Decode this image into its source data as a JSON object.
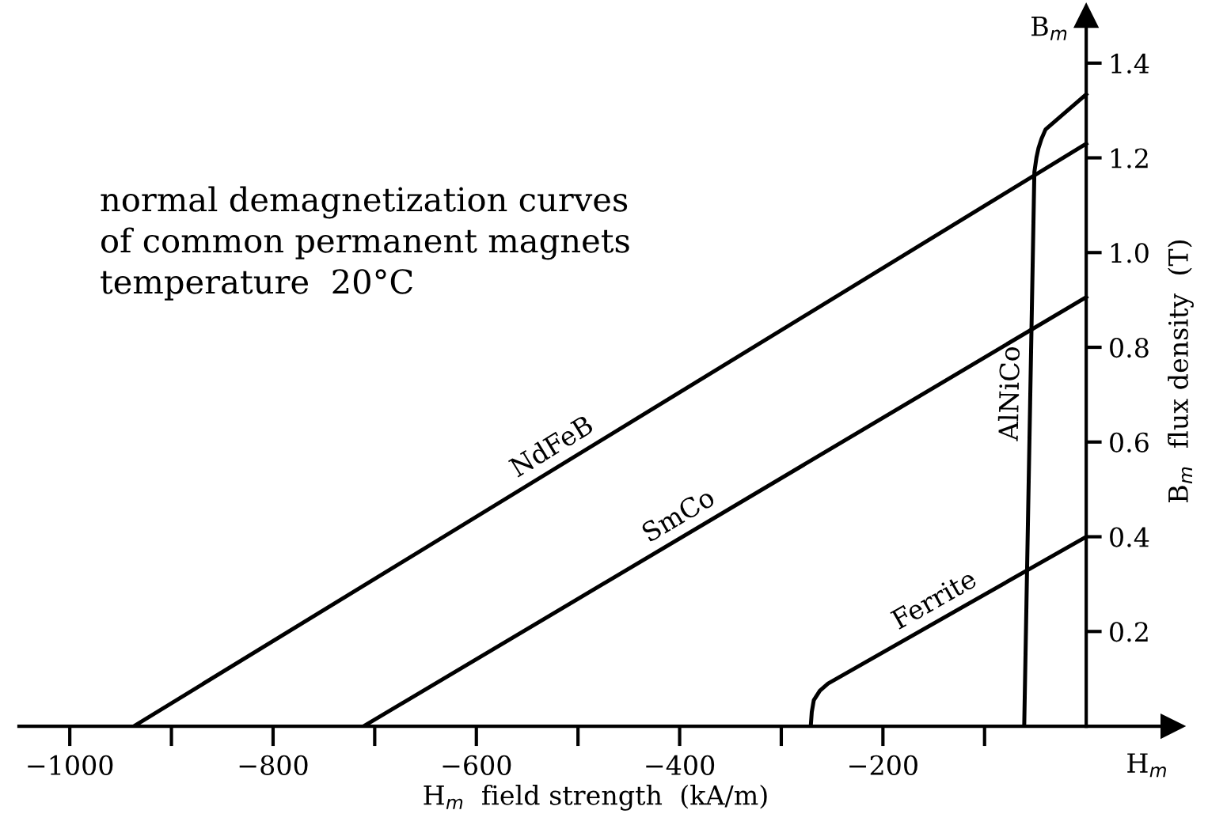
{
  "chart_data": {
    "type": "line",
    "title": "normal demagnetization curves\nof common permanent magnets\ntemperature  20°C",
    "xlabel": "H$_{m}$  field strength  (kA/m)",
    "ylabel": "B$_{m}$  flux density  (T)",
    "series": [
      {
        "name": "NdFeB",
        "color": "#000000",
        "x": [
          -937,
          0
        ],
        "values": [
          0,
          1.23
        ]
      },
      {
        "name": "SmCo",
        "color": "#000000",
        "x": [
          -711,
          0
        ],
        "values": [
          0,
          0.906
        ]
      },
      {
        "name": "Ferrite",
        "color": "#000000",
        "x": [
          -271,
          -270,
          -268,
          -262,
          -254,
          0
        ],
        "values": [
          0,
          0.03,
          0.055,
          0.075,
          0.09,
          0.4
        ]
      },
      {
        "name": "AlNiCo",
        "color": "#000000",
        "x": [
          -61,
          -51,
          -49,
          -47,
          -44,
          -40,
          0
        ],
        "values": [
          0,
          1.17,
          1.2,
          1.22,
          1.24,
          1.26,
          1.334
        ]
      }
    ],
    "annotations": [
      "B$_{m}$",
      "H$_{m}$"
    ],
    "xlim": [
      -1050,
      85
    ],
    "ylim": [
      0,
      1.5
    ],
    "xticks": [
      {
        "value": -1000,
        "label": "−1000"
      },
      {
        "value": -900,
        "label": null
      },
      {
        "value": -800,
        "label": "−800"
      },
      {
        "value": -700,
        "label": null
      },
      {
        "value": -600,
        "label": "−600"
      },
      {
        "value": -500,
        "label": null
      },
      {
        "value": -400,
        "label": "−400"
      },
      {
        "value": -300,
        "label": null
      },
      {
        "value": -200,
        "label": "−200"
      },
      {
        "value": -100,
        "label": null
      }
    ],
    "yticks": [
      0.2,
      0.4,
      {
        "value": 0.6,
        "label": "0.6"
      },
      0.8,
      {
        "value": 1.0,
        "label": "1.0"
      },
      1.2,
      1.4
    ],
    "grid": false,
    "marker": "none",
    "line_style": "solid"
  }
}
